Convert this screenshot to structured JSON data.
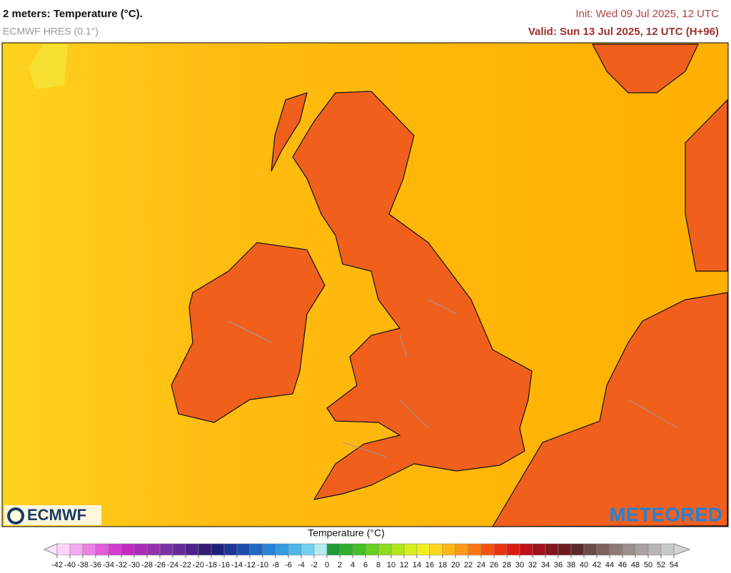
{
  "header": {
    "title": "2 meters: Temperature (°C).",
    "subtitle": "ECMWF HRES (0.1°)",
    "init": "Init: Wed 09 Jul 2025, 12 UTC",
    "valid": "Valid: Sun 13 Jul 2025, 12 UTC (H+96)"
  },
  "map": {
    "logo_left": "ECMWF",
    "logo_right": "METEORED"
  },
  "colorbar": {
    "label": "Temperature (°C)",
    "ticks": [
      -42,
      -40,
      -38,
      -36,
      -34,
      -32,
      -30,
      -28,
      -26,
      -24,
      -22,
      -20,
      -18,
      -16,
      -14,
      -12,
      -10,
      -8,
      -6,
      -4,
      -2,
      0,
      2,
      4,
      6,
      8,
      10,
      12,
      14,
      16,
      18,
      20,
      22,
      24,
      26,
      28,
      30,
      32,
      34,
      36,
      38,
      40,
      42,
      44,
      46,
      48,
      50,
      52,
      54
    ],
    "colors": [
      "#fcd4f8",
      "#f4aaee",
      "#ec82e6",
      "#e25cdc",
      "#d43ccf",
      "#c42ac2",
      "#ac2cb8",
      "#9430ae",
      "#7c30a6",
      "#642a98",
      "#4c2288",
      "#341c70",
      "#1c2078",
      "#1a3698",
      "#1c4eb2",
      "#2068c6",
      "#2882d6",
      "#349ce0",
      "#4cb6ea",
      "#74d0f0",
      "#b0ecf2",
      "#1e9a3a",
      "#2eae2e",
      "#44c026",
      "#66d020",
      "#8cdc1c",
      "#b2e61c",
      "#d8ee1e",
      "#f4ee20",
      "#ffd81c",
      "#ffb818",
      "#ff9816",
      "#fc7414",
      "#f25410",
      "#e83410",
      "#d81c12",
      "#c01016",
      "#a01018",
      "#84141c",
      "#6c1c20",
      "#5a2a28",
      "#6e4a46",
      "#7e605c",
      "#8e7874",
      "#9c8e8c",
      "#aaa2a0",
      "#b8b4b4",
      "#c8c8c8"
    ]
  }
}
